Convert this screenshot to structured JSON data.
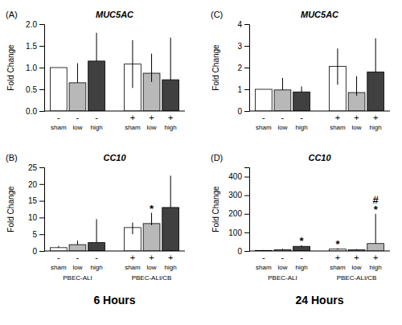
{
  "chart_data": [
    {
      "type": "bar",
      "title": "MUC5AC",
      "panel_label": "(A)",
      "ylabel": "Fold Change",
      "categories": [
        "sham",
        "low",
        "high",
        "sham",
        "low",
        "high"
      ],
      "treatment_labels": [
        "-",
        "-",
        "-",
        "+",
        "+",
        "+"
      ],
      "values": [
        1.0,
        0.65,
        1.15,
        1.08,
        0.87,
        0.72
      ],
      "errors_low": [
        0.0,
        0.0,
        0.0,
        0.55,
        0.2,
        0.0
      ],
      "errors_high": [
        0.0,
        0.45,
        0.65,
        0.55,
        0.45,
        0.97
      ],
      "colors": [
        "white",
        "#b8b8b8",
        "#404040",
        "white",
        "#b8b8b8",
        "#404040"
      ],
      "ylim": [
        0,
        2
      ],
      "yticks": [
        {
          "value": 0,
          "label": "0.0"
        },
        0.5,
        {
          "value": 1.0,
          "label": "1.0"
        },
        1.5,
        {
          "value": 2.0,
          "label": "2.0"
        }
      ]
    },
    {
      "type": "bar",
      "title": "CC10",
      "panel_label": "(B)",
      "ylabel": "Fold Change",
      "xlabel": "6 Hours",
      "categories": [
        "sham",
        "low",
        "high",
        "sham",
        "low",
        "high"
      ],
      "treatment_labels": [
        "-",
        "-",
        "-",
        "+",
        "+",
        "+"
      ],
      "group_labels": [
        "PBEC-ALI",
        "PBEC-ALI/CB"
      ],
      "values": [
        1.0,
        1.9,
        2.5,
        7.0,
        8.2,
        13.0
      ],
      "errors_low": [
        0.0,
        0.0,
        0.0,
        2.0,
        0.5,
        0.0
      ],
      "errors_high": [
        0.5,
        1.2,
        7.0,
        1.5,
        3.2,
        9.5
      ],
      "colors": [
        "white",
        "#b8b8b8",
        "#404040",
        "white",
        "#b8b8b8",
        "#404040"
      ],
      "ylim": [
        0,
        25
      ],
      "yticks": [
        0,
        5,
        10,
        15,
        20,
        25
      ],
      "annotations": [
        {
          "text": "*",
          "index": 4
        }
      ]
    },
    {
      "type": "bar",
      "title": "MUC5AC",
      "panel_label": "(C)",
      "ylabel": "Fold Change",
      "categories": [
        "sham",
        "low",
        "high",
        "sham",
        "low",
        "high"
      ],
      "treatment_labels": [
        "-",
        "-",
        "-",
        "+",
        "+",
        "+"
      ],
      "values": [
        1.0,
        0.97,
        0.88,
        2.06,
        0.85,
        1.8
      ],
      "errors_low": [
        0.0,
        0.0,
        0.0,
        0.85,
        0.15,
        0.0
      ],
      "errors_high": [
        0.0,
        0.55,
        0.25,
        0.82,
        0.75,
        1.55
      ],
      "colors": [
        "white",
        "#b8b8b8",
        "#404040",
        "white",
        "#b8b8b8",
        "#404040"
      ],
      "ylim": [
        0,
        4
      ],
      "yticks": [
        0,
        1,
        2,
        3,
        4
      ]
    },
    {
      "type": "bar",
      "title": "CC10",
      "panel_label": "(D)",
      "ylabel": "Fold Change",
      "xlabel": "24 Hours",
      "categories": [
        "sham",
        "low",
        "high",
        "sham",
        "low",
        "high"
      ],
      "treatment_labels": [
        "-",
        "-",
        "-",
        "+",
        "+",
        "+"
      ],
      "group_labels": [
        "PBEC-ALI",
        "PBEC-ALI/CB"
      ],
      "values": [
        3.0,
        7.0,
        25.0,
        10.0,
        7.0,
        40.0
      ],
      "errors_low": [
        0.5,
        1.0,
        3.0,
        3.0,
        1.5,
        0.0
      ],
      "errors_high": [
        2.0,
        5.0,
        5.0,
        5.0,
        3.0,
        160.0
      ],
      "colors": [
        "white",
        "#b8b8b8",
        "#404040",
        "white",
        "#b8b8b8",
        "#b8b8b8"
      ],
      "ylim": [
        0,
        450
      ],
      "yticks": [
        0,
        100,
        200,
        300,
        400
      ],
      "annotations": [
        {
          "text": "*",
          "index": 2
        },
        {
          "text": "*",
          "index": 3
        },
        {
          "text": "*",
          "index": 5
        },
        {
          "text": "#",
          "index": 5
        }
      ]
    }
  ]
}
